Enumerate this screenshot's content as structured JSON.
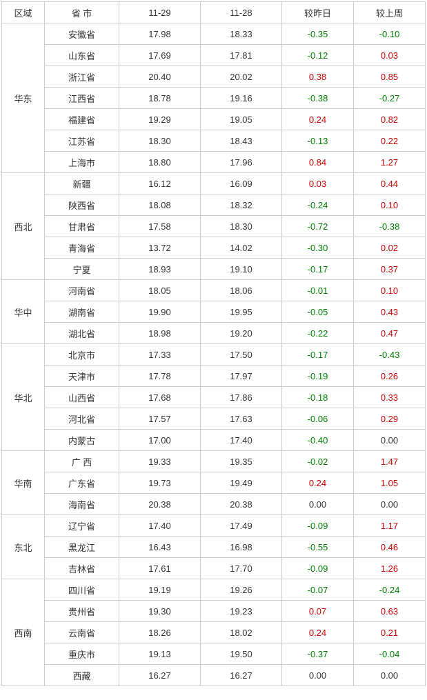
{
  "headers": {
    "region": "区域",
    "province": "省  市",
    "date1": "11-29",
    "date2": "11-28",
    "diff_day": "较昨日",
    "diff_week": "较上周"
  },
  "regions": [
    {
      "name": "华东",
      "rows": [
        {
          "province": "安徽省",
          "v1": "17.98",
          "v2": "18.33",
          "d1": "-0.35",
          "d2": "-0.10"
        },
        {
          "province": "山东省",
          "v1": "17.69",
          "v2": "17.81",
          "d1": "-0.12",
          "d2": "0.03"
        },
        {
          "province": "浙江省",
          "v1": "20.40",
          "v2": "20.02",
          "d1": "0.38",
          "d2": "0.85"
        },
        {
          "province": "江西省",
          "v1": "18.78",
          "v2": "19.16",
          "d1": "-0.38",
          "d2": "-0.27"
        },
        {
          "province": "福建省",
          "v1": "19.29",
          "v2": "19.05",
          "d1": "0.24",
          "d2": "0.82"
        },
        {
          "province": "江苏省",
          "v1": "18.30",
          "v2": "18.43",
          "d1": "-0.13",
          "d2": "0.22"
        },
        {
          "province": "上海市",
          "v1": "18.80",
          "v2": "17.96",
          "d1": "0.84",
          "d2": "1.27"
        }
      ]
    },
    {
      "name": "西北",
      "rows": [
        {
          "province": "新疆",
          "v1": "16.12",
          "v2": "16.09",
          "d1": "0.03",
          "d2": "0.44"
        },
        {
          "province": "陕西省",
          "v1": "18.08",
          "v2": "18.32",
          "d1": "-0.24",
          "d2": "0.10"
        },
        {
          "province": "甘肃省",
          "v1": "17.58",
          "v2": "18.30",
          "d1": "-0.72",
          "d2": "-0.38"
        },
        {
          "province": "青海省",
          "v1": "13.72",
          "v2": "14.02",
          "d1": "-0.30",
          "d2": "0.02"
        },
        {
          "province": "宁夏",
          "v1": "18.93",
          "v2": "19.10",
          "d1": "-0.17",
          "d2": "0.37"
        }
      ]
    },
    {
      "name": "华中",
      "rows": [
        {
          "province": "河南省",
          "v1": "18.05",
          "v2": "18.06",
          "d1": "-0.01",
          "d2": "0.10"
        },
        {
          "province": "湖南省",
          "v1": "19.90",
          "v2": "19.95",
          "d1": "-0.05",
          "d2": "0.43"
        },
        {
          "province": "湖北省",
          "v1": "18.98",
          "v2": "19.20",
          "d1": "-0.22",
          "d2": "0.47"
        }
      ]
    },
    {
      "name": "华北",
      "rows": [
        {
          "province": "北京市",
          "v1": "17.33",
          "v2": "17.50",
          "d1": "-0.17",
          "d2": "-0.43"
        },
        {
          "province": "天津市",
          "v1": "17.78",
          "v2": "17.97",
          "d1": "-0.19",
          "d2": "0.26"
        },
        {
          "province": "山西省",
          "v1": "17.68",
          "v2": "17.86",
          "d1": "-0.18",
          "d2": "0.33"
        },
        {
          "province": "河北省",
          "v1": "17.57",
          "v2": "17.63",
          "d1": "-0.06",
          "d2": "0.29"
        },
        {
          "province": "内蒙古",
          "v1": "17.00",
          "v2": "17.40",
          "d1": "-0.40",
          "d2": "0.00"
        }
      ]
    },
    {
      "name": "华南",
      "rows": [
        {
          "province": "广  西",
          "v1": "19.33",
          "v2": "19.35",
          "d1": "-0.02",
          "d2": "1.47"
        },
        {
          "province": "广东省",
          "v1": "19.73",
          "v2": "19.49",
          "d1": "0.24",
          "d2": "1.05"
        },
        {
          "province": "海南省",
          "v1": "20.38",
          "v2": "20.38",
          "d1": "0.00",
          "d2": "0.00"
        }
      ]
    },
    {
      "name": "东北",
      "rows": [
        {
          "province": "辽宁省",
          "v1": "17.40",
          "v2": "17.49",
          "d1": "-0.09",
          "d2": "1.17"
        },
        {
          "province": "黑龙江",
          "v1": "16.43",
          "v2": "16.98",
          "d1": "-0.55",
          "d2": "0.46"
        },
        {
          "province": "吉林省",
          "v1": "17.61",
          "v2": "17.70",
          "d1": "-0.09",
          "d2": "1.26"
        }
      ]
    },
    {
      "name": "西南",
      "rows": [
        {
          "province": "四川省",
          "v1": "19.19",
          "v2": "19.26",
          "d1": "-0.07",
          "d2": "-0.24"
        },
        {
          "province": "贵州省",
          "v1": "19.30",
          "v2": "19.23",
          "d1": "0.07",
          "d2": "0.63"
        },
        {
          "province": "云南省",
          "v1": "18.26",
          "v2": "18.02",
          "d1": "0.24",
          "d2": "0.21"
        },
        {
          "province": "重庆市",
          "v1": "19.13",
          "v2": "19.50",
          "d1": "-0.37",
          "d2": "-0.04"
        },
        {
          "province": "西藏",
          "v1": "16.27",
          "v2": "16.27",
          "d1": "0.00",
          "d2": "0.00"
        }
      ]
    }
  ]
}
